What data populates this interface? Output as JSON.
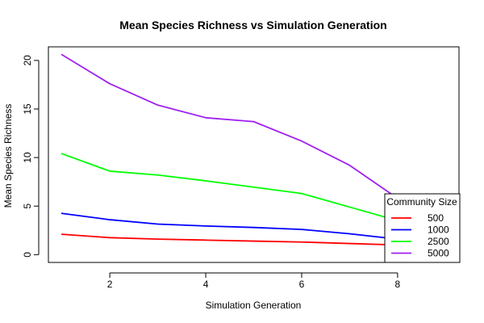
{
  "chart_data": {
    "type": "line",
    "title": "Mean Species Richness vs Simulation Generation",
    "xlabel": "Simulation Generation",
    "ylabel": "Mean Species Richness",
    "xlim": [
      0.72,
      9.28
    ],
    "ylim": [
      -0.8,
      21.4
    ],
    "x_ticks": [
      2,
      4,
      6,
      8
    ],
    "y_ticks": [
      0,
      5,
      10,
      15,
      20
    ],
    "grid": false,
    "legend_title": "Community Size",
    "legend_position": "bottom-right",
    "x": [
      1,
      2,
      3,
      4,
      5,
      6,
      7,
      8
    ],
    "series": [
      {
        "name": "500",
        "color": "#ff0000",
        "values": [
          2.1,
          1.75,
          1.6,
          1.5,
          1.4,
          1.3,
          1.15,
          1.0
        ]
      },
      {
        "name": "1000",
        "color": "#0000ff",
        "values": [
          4.25,
          3.6,
          3.15,
          2.95,
          2.8,
          2.6,
          2.15,
          1.6
        ]
      },
      {
        "name": "2500",
        "color": "#00ff00",
        "values": [
          10.4,
          8.6,
          8.2,
          7.6,
          6.95,
          6.3,
          4.9,
          3.5
        ]
      },
      {
        "name": "5000",
        "color": "#a020f0",
        "values": [
          20.6,
          17.6,
          15.4,
          14.1,
          13.7,
          11.7,
          9.2,
          5.8
        ]
      }
    ]
  }
}
